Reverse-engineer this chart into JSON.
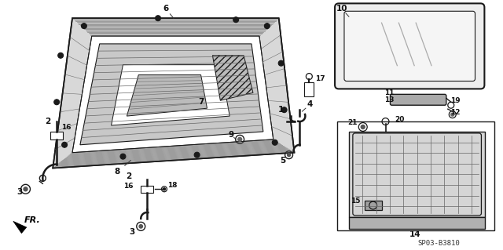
{
  "bg_color": "#ffffff",
  "line_color": "#1a1a1a",
  "part_number": "SP03-B3810",
  "fig_width": 6.4,
  "fig_height": 3.19,
  "dpi": 100
}
